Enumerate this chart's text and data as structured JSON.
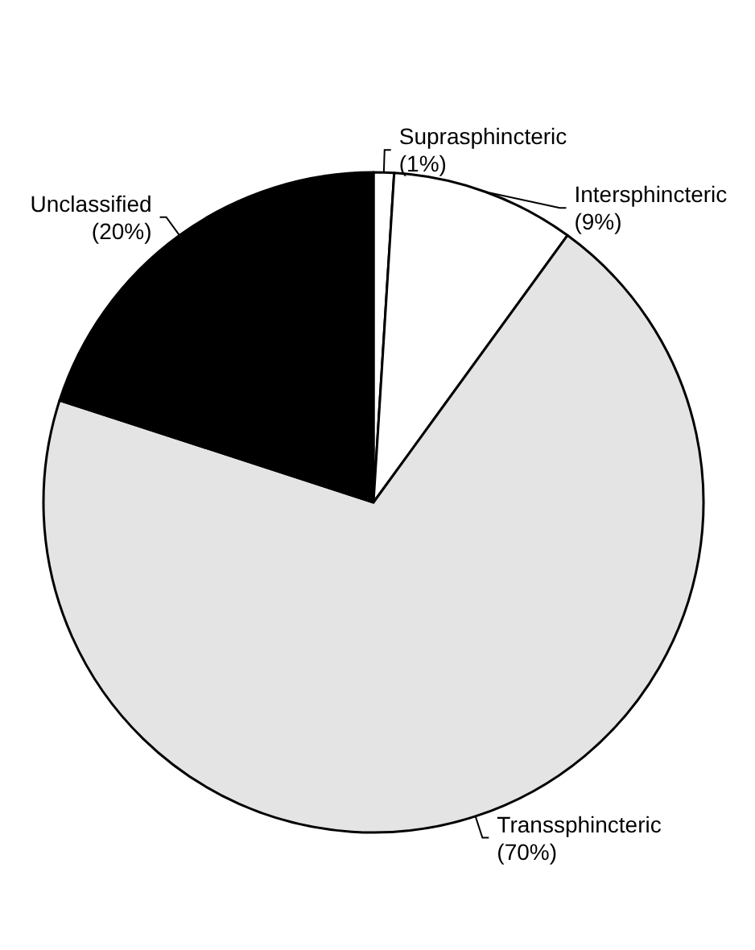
{
  "chart_data": {
    "type": "pie",
    "categories": [
      "Suprasphincteric",
      "Intersphincteric",
      "Transsphincteric",
      "Unclassified"
    ],
    "values": [
      1,
      9,
      70,
      20
    ],
    "value_labels": [
      "(1%)",
      "(9%)",
      "(70%)",
      "(20%)"
    ],
    "colors": [
      "#ffffff",
      "#ffffff",
      "#e4e4e4",
      "#000000"
    ],
    "legend": false
  }
}
